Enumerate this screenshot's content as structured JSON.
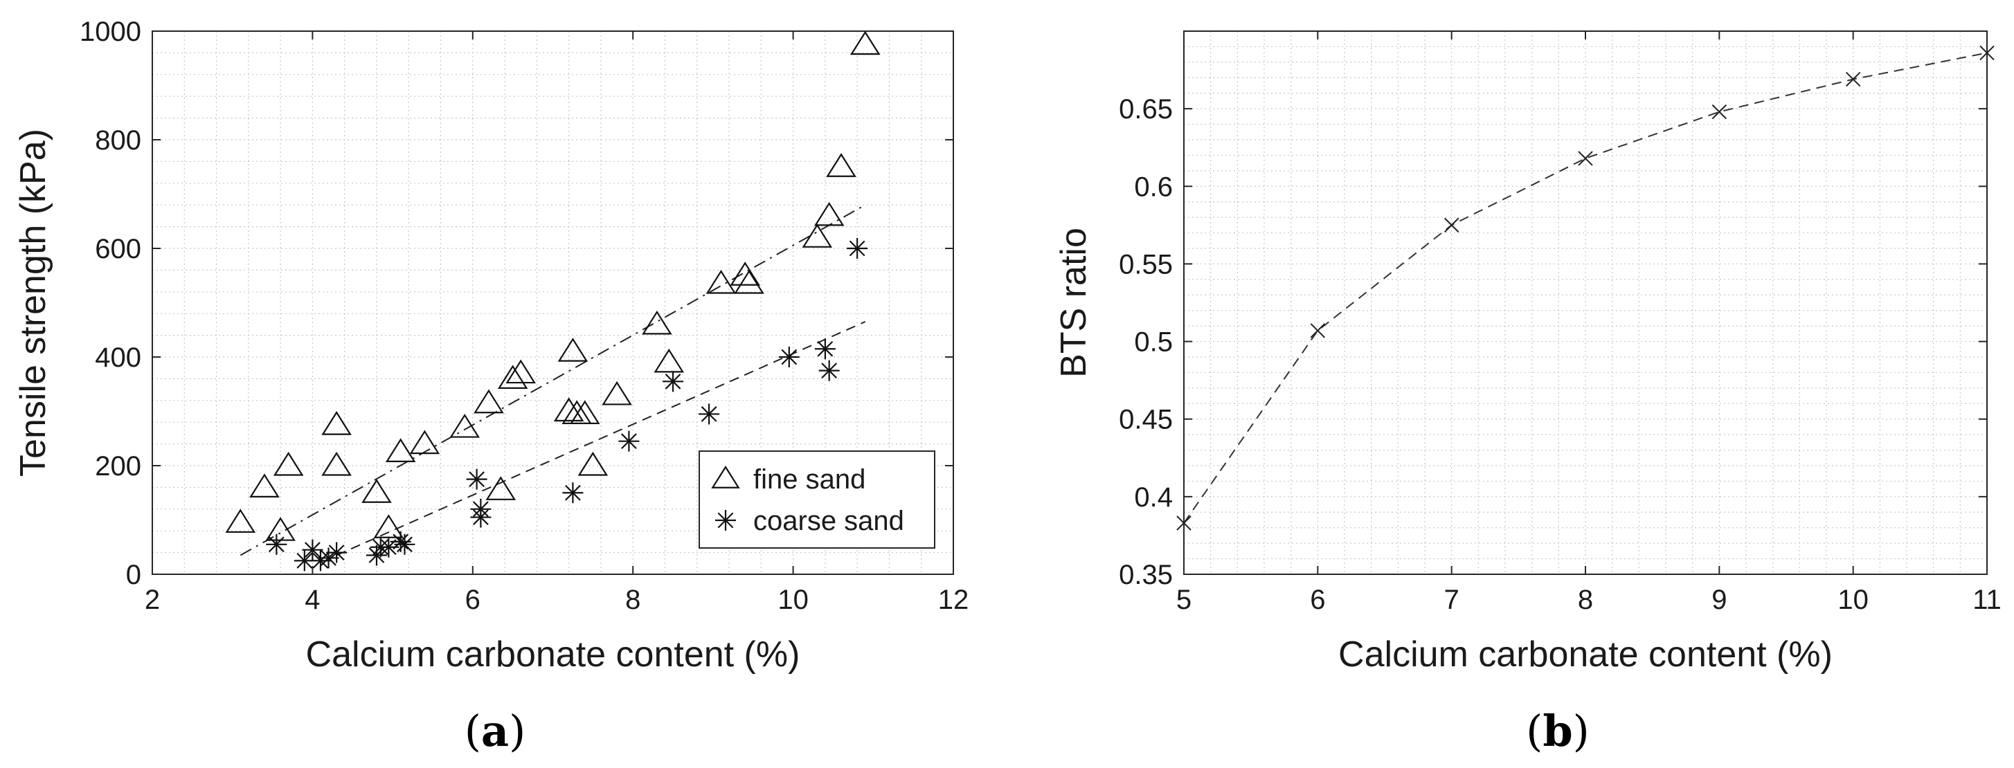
{
  "chart_data": [
    {
      "type": "scatter",
      "panel_label": {
        "open": "(",
        "letter": "a",
        "close": ")"
      },
      "xlabel": "Calcium carbonate content (%)",
      "ylabel": "Tensile strength (kPa)",
      "xlim": [
        2,
        12
      ],
      "ylim": [
        0,
        1000
      ],
      "xticks": [
        2,
        4,
        6,
        8,
        10,
        12
      ],
      "yticks": [
        0,
        200,
        400,
        600,
        800,
        1000
      ],
      "grid": "minor-dotted",
      "legend": {
        "placement": "bottom-right",
        "entries": [
          "fine sand",
          "coarse sand"
        ]
      },
      "series": [
        {
          "name": "fine sand",
          "marker": "triangle",
          "points": [
            [
              3.1,
              95
            ],
            [
              3.4,
              160
            ],
            [
              3.6,
              80
            ],
            [
              3.7,
              200
            ],
            [
              4.3,
              275
            ],
            [
              4.3,
              200
            ],
            [
              4.8,
              150
            ],
            [
              4.95,
              85
            ],
            [
              5.1,
              225
            ],
            [
              5.4,
              240
            ],
            [
              5.9,
              270
            ],
            [
              6.2,
              315
            ],
            [
              6.35,
              155
            ],
            [
              6.5,
              360
            ],
            [
              6.6,
              370
            ],
            [
              7.2,
              300
            ],
            [
              7.25,
              410
            ],
            [
              7.3,
              295
            ],
            [
              7.4,
              295
            ],
            [
              7.5,
              200
            ],
            [
              7.8,
              330
            ],
            [
              8.3,
              460
            ],
            [
              8.45,
              390
            ],
            [
              9.1,
              535
            ],
            [
              9.4,
              550
            ],
            [
              9.45,
              535
            ],
            [
              10.3,
              620
            ],
            [
              10.45,
              660
            ],
            [
              10.6,
              750
            ],
            [
              10.9,
              975
            ]
          ],
          "trend": {
            "style": "dash-dot",
            "x": [
              3.1,
              10.9
            ],
            "y": [
              35,
              680
            ]
          }
        },
        {
          "name": "coarse sand",
          "marker": "asterisk",
          "points": [
            [
              3.55,
              55
            ],
            [
              3.9,
              25
            ],
            [
              4.0,
              45
            ],
            [
              4.1,
              25
            ],
            [
              4.2,
              30
            ],
            [
              4.3,
              40
            ],
            [
              4.8,
              35
            ],
            [
              4.85,
              50
            ],
            [
              4.95,
              50
            ],
            [
              5.1,
              60
            ],
            [
              5.15,
              55
            ],
            [
              6.05,
              175
            ],
            [
              6.1,
              120
            ],
            [
              6.1,
              105
            ],
            [
              7.25,
              150
            ],
            [
              7.95,
              245
            ],
            [
              8.5,
              355
            ],
            [
              8.95,
              295
            ],
            [
              9.95,
              400
            ],
            [
              10.4,
              415
            ],
            [
              10.45,
              375
            ],
            [
              10.8,
              600
            ]
          ],
          "trend": {
            "style": "dashed",
            "x": [
              4.3,
              10.9
            ],
            "y": [
              35,
              465
            ]
          }
        }
      ]
    },
    {
      "type": "line",
      "panel_label": {
        "open": "(",
        "letter": "b",
        "close": ")"
      },
      "xlabel": "Calcium carbonate content (%)",
      "ylabel": "BTS ratio",
      "xlim": [
        5,
        11
      ],
      "ylim": [
        0.35,
        0.7
      ],
      "xticks": [
        5,
        6,
        7,
        8,
        9,
        10,
        11
      ],
      "yticks": [
        0.35,
        0.4,
        0.45,
        0.5,
        0.55,
        0.6,
        0.65
      ],
      "ytick_labels": [
        "0.35",
        "0.4",
        "0.45",
        "0.5",
        "0.55",
        "0.6",
        "0.65"
      ],
      "grid": "minor-dotted",
      "line_style": "dashed",
      "marker": "x",
      "x": [
        5,
        6,
        7,
        8,
        9,
        10,
        11
      ],
      "y": [
        0.383,
        0.507,
        0.575,
        0.618,
        0.648,
        0.669,
        0.686
      ]
    }
  ]
}
